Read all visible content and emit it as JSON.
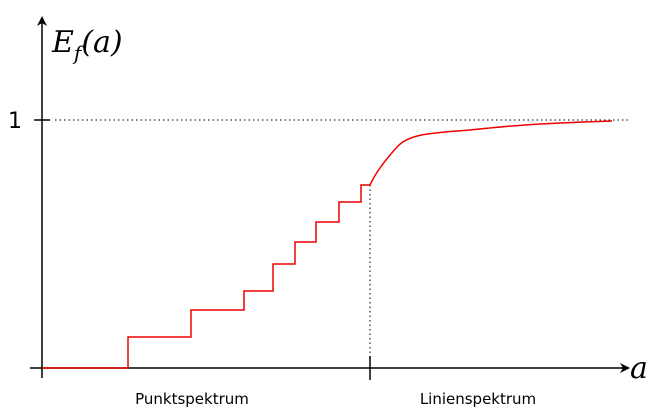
{
  "y_axis": {
    "label": {
      "main": "E",
      "sub": "f",
      "rest": "(a)"
    },
    "tick_label": "1"
  },
  "x_axis": {
    "label": "a"
  },
  "regions": [
    "Punktspektrum",
    "Linienspektrum"
  ]
}
